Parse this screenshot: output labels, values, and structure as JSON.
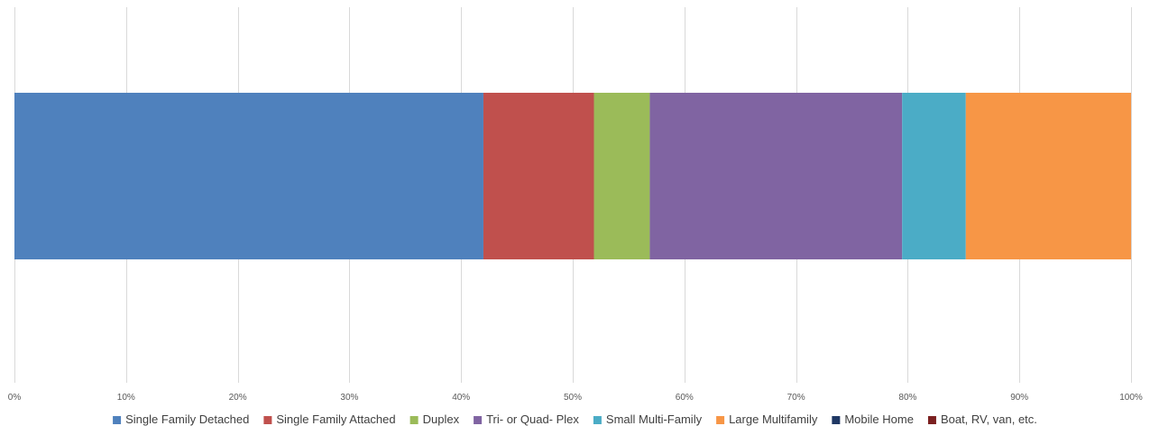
{
  "chart_data": {
    "type": "bar",
    "orientation": "horizontal",
    "stacked": "100%",
    "categories": [
      ""
    ],
    "series": [
      {
        "name": "Single Family Detached",
        "values": [
          42.0
        ],
        "color": "#4F81BD"
      },
      {
        "name": "Single Family Attached",
        "values": [
          9.9
        ],
        "color": "#C0504D"
      },
      {
        "name": "Duplex",
        "values": [
          5.0
        ],
        "color": "#9BBB59"
      },
      {
        "name": "Tri- or Quad- Plex",
        "values": [
          22.6
        ],
        "color": "#8064A2"
      },
      {
        "name": "Small Multi-Family",
        "values": [
          5.7
        ],
        "color": "#4BACC6"
      },
      {
        "name": "Large Multifamily",
        "values": [
          14.8
        ],
        "color": "#F79646"
      },
      {
        "name": "Mobile Home",
        "values": [
          0
        ],
        "color": "#1F3864"
      },
      {
        "name": "Boat, RV, van, etc.",
        "values": [
          0
        ],
        "color": "#7B2020"
      }
    ],
    "xlim": [
      0,
      100
    ],
    "x_ticks": [
      "0%",
      "10%",
      "20%",
      "30%",
      "40%",
      "50%",
      "60%",
      "70%",
      "80%",
      "90%",
      "100%"
    ],
    "grid": "vertical",
    "legend": "bottom",
    "title": "",
    "xlabel": "",
    "ylabel": ""
  }
}
